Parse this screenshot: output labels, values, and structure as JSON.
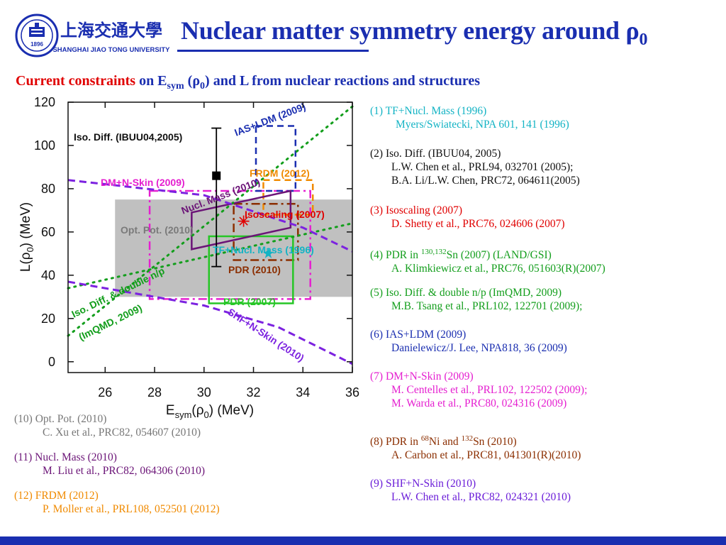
{
  "header": {
    "logo_cn": "上海交通大學",
    "logo_en": "SHANGHAI JIAO TONG UNIVERSITY",
    "logo_year": "1896",
    "title": "Nuclear matter symmetry energy around ρ",
    "title_sub": "0",
    "accent": "#1a2eb0"
  },
  "subtitle": {
    "red_part": "Current constraints",
    "blue_part_a": " on E",
    "blue_sub_a": "sym",
    "blue_part_b": " (ρ",
    "blue_sub_b": "0",
    "blue_part_c": ") and L from nuclear reactions and structures"
  },
  "chart_data": {
    "type": "scatter",
    "xlabel_main": "E",
    "xlabel_sub": "sym",
    "xlabel_rest": "(ρ",
    "xlabel_sub2": "0",
    "xlabel_end": ") (MeV)",
    "ylabel_main": "L(ρ",
    "ylabel_sub": "0",
    "ylabel_end": ") (MeV)",
    "xlim": [
      24.5,
      36
    ],
    "ylim": [
      -5,
      120
    ],
    "x_ticks": [
      26,
      28,
      30,
      32,
      34,
      36
    ],
    "y_ticks": [
      0,
      20,
      40,
      60,
      80,
      100,
      120
    ],
    "x_tick_labels": [
      "26",
      "28",
      "30",
      "32",
      "34",
      "36"
    ],
    "y_tick_labels": [
      "0",
      "20",
      "40",
      "60",
      "80",
      "100",
      "120"
    ],
    "regions": [
      {
        "label": "Opt. Pot. (2010)",
        "kind": "filled_rect",
        "color": "#c0c0c0",
        "x": [
          26.4,
          36.0
        ],
        "y": [
          30,
          75
        ]
      },
      {
        "label": "DM+N-Skin (2009)",
        "kind": "dashdot_rect",
        "color": "#e51fd0",
        "x": [
          27.8,
          34.3
        ],
        "y": [
          29,
          79
        ]
      },
      {
        "label": "IAS+LDM (2009)",
        "kind": "dashed_rect",
        "color": "#1a2eb0",
        "x": [
          32.1,
          33.7
        ],
        "y": [
          79,
          109
        ]
      },
      {
        "label": "FRDM (2012)",
        "kind": "dashed_rect",
        "color": "#f08a00",
        "x": [
          32.4,
          34.4
        ],
        "y": [
          68,
          84
        ]
      },
      {
        "label": "PDR (2010)",
        "kind": "dashdot_rect",
        "color": "#8b2e00",
        "x": [
          31.2,
          33.8
        ],
        "y": [
          47,
          73
        ]
      },
      {
        "label": "PDR (2007)",
        "kind": "rect",
        "color": "#26c626",
        "x": [
          30.2,
          33.6
        ],
        "y": [
          27,
          58
        ]
      },
      {
        "label": "Nucl. Mass (2010)",
        "kind": "polygon",
        "color": "#6b1477",
        "points": [
          [
            29.5,
            52
          ],
          [
            29.5,
            69
          ],
          [
            33.5,
            79
          ],
          [
            33.5,
            62
          ]
        ]
      }
    ],
    "lines": [
      {
        "label": "Iso. Diff. & double n/p (ImQMD, 2009)",
        "style": "dotted",
        "color": "#139e1c",
        "points": [
          [
            24.5,
            12
          ],
          [
            36,
            118
          ]
        ]
      },
      {
        "label": "Iso. Diff. & double n/p (ImQMD, 2009)",
        "style": "dotted",
        "color": "#139e1c",
        "points": [
          [
            24.5,
            34
          ],
          [
            36,
            64
          ]
        ]
      },
      {
        "label": "DM+N-Skin (2009)",
        "style": "dashed",
        "color": "#7c22e0",
        "points": [
          [
            24.5,
            84
          ],
          [
            30,
            77
          ],
          [
            34,
            62
          ],
          [
            36,
            51
          ]
        ]
      },
      {
        "label": "SHF+N-Skin (2010)",
        "style": "dashed",
        "color": "#7c22e0",
        "points": [
          [
            24.5,
            37
          ],
          [
            30,
            26
          ],
          [
            33,
            16
          ],
          [
            36,
            -1
          ]
        ]
      }
    ],
    "points": [
      {
        "label": "Iso. Diff. (IBUU04,2005)",
        "x": 30.5,
        "y": 86,
        "yerr": [
          44,
          108
        ],
        "marker": "square",
        "color": "#000000"
      },
      {
        "label": "Isoscaling (2007)",
        "x": 31.6,
        "y": 65,
        "marker": "asterisk",
        "color": "#e00000"
      },
      {
        "label": "TF+Nucl. Mass (1996)",
        "x": 32.6,
        "y": 50,
        "marker": "star",
        "color": "#12b3c4"
      }
    ],
    "annotations": [
      {
        "text": "Iso. Diff. (IBUU04,2005)",
        "color": "#111111"
      },
      {
        "text": "IAS+LDM (2009)",
        "color": "#1a2eb0"
      },
      {
        "text": "FRDM (2012)",
        "color": "#f08a00"
      },
      {
        "text": "DM+N-Skin (2009)",
        "color": "#e51fd0"
      },
      {
        "text": "Nucl. Mass (2010)",
        "color": "#6b1477"
      },
      {
        "text": "Isoscaling (2007)",
        "color": "#e00000"
      },
      {
        "text": "Opt. Pot. (2010)",
        "color": "#7a7a7a"
      },
      {
        "text": "TF+Nucl. Mass (1996)",
        "color": "#12b3c4"
      },
      {
        "text": "PDR (2010)",
        "color": "#8b2e00"
      },
      {
        "text": "Iso. Diff.  & double n/p",
        "color": "#139e1c"
      },
      {
        "text": "(ImQMD, 2009)",
        "color": "#139e1c"
      },
      {
        "text": "PDR (2007)",
        "color": "#26c626"
      },
      {
        "text": "SHF+N-Skin (2010)",
        "color": "#7c22e0"
      }
    ]
  },
  "references_right": [
    {
      "color": "cyan",
      "l1": "(1) TF+Nucl. Mass (1996)",
      "l2": "Myers/Swiatecki, NPA 601, 141 (1996)"
    },
    {
      "color": "black",
      "l1": "(2) Iso. Diff. (IBUU04, 2005)",
      "l2": "L.W. Chen et al., PRL94, 032701 (2005);",
      "l3": "B.A. Li/L.W. Chen, PRC72, 064611(2005)"
    },
    {
      "color": "red",
      "l1": "(3) Isoscaling (2007)",
      "l2": "D. Shetty et al., PRC76, 024606 (2007)"
    },
    {
      "color": "green",
      "l1a": "(4) PDR in ",
      "l1sup": "130,132",
      "l1b": "Sn (2007) (LAND/GSI)",
      "l2": "A. Klimkiewicz et al., PRC76, 051603(R)(2007)"
    },
    {
      "color": "green",
      "l1": "(5) Iso. Diff. & double n/p (ImQMD, 2009)",
      "l2": "M.B. Tsang et al., PRL102, 122701 (2009);"
    },
    {
      "color": "blue",
      "l1": "(6) IAS+LDM (2009)",
      "l2": "Danielewicz/J. Lee, NPA818, 36 (2009)"
    },
    {
      "color": "magenta",
      "l1": "(7) DM+N-Skin (2009)",
      "l2": "M. Centelles et al., PRL102, 122502 (2009);",
      "l3": "M. Warda et al., PRC80, 024316 (2009)"
    },
    {
      "color": "brown",
      "l1a": "(8) PDR in ",
      "l1sup": "68",
      "l1b": "Ni and ",
      "l1sup2": "132",
      "l1c": "Sn (2010)",
      "l2": "A. Carbon et al., PRC81, 041301(R)(2010)"
    },
    {
      "color": "violet",
      "l1": "(9) SHF+N-Skin (2010)",
      "l2": "L.W. Chen et al., PRC82, 024321 (2010)"
    }
  ],
  "references_left": [
    {
      "color": "gray",
      "l1": "(10) Opt. Pot. (2010)",
      "l2": "C. Xu et al., PRC82, 054607 (2010)"
    },
    {
      "color": "purple",
      "l1": "(11) Nucl. Mass (2010)",
      "l2": "M. Liu et al., PRC82, 064306 (2010)"
    },
    {
      "color": "orange",
      "l1": "(12) FRDM (2012)",
      "l2": "P. Moller et al., PRL108, 052501 (2012)"
    }
  ]
}
